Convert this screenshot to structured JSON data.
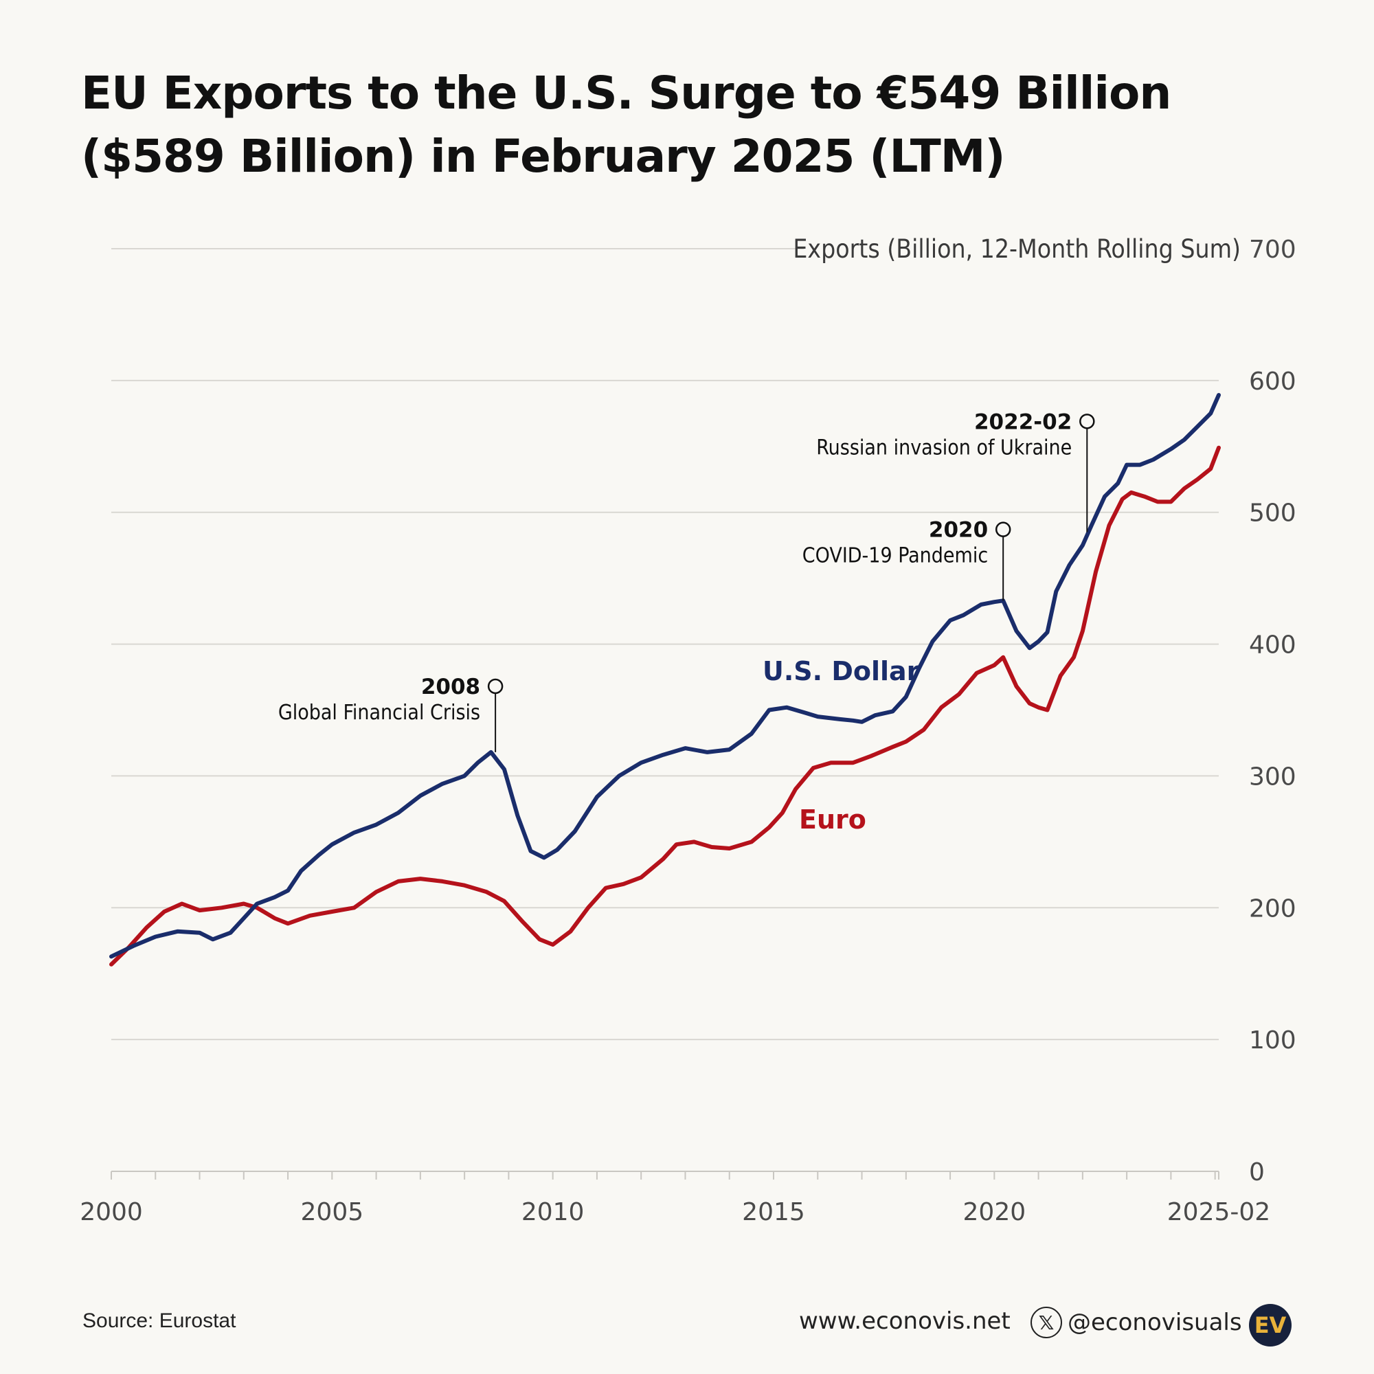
{
  "title": {
    "line1": "EU Exports to the U.S. Surge to €549 Billion",
    "line2": "($589 Billion) in February 2025 (LTM)"
  },
  "chart_data": {
    "type": "line",
    "title": "EU Exports to the U.S. Surge to €549 Billion ($589 Billion) in February 2025 (LTM)",
    "ylabel": "Exports (Billion, 12-Month Rolling Sum)",
    "xlabel": "",
    "ylim": [
      0,
      700
    ],
    "xlim": [
      2000.0,
      2025.083
    ],
    "y_ticks": [
      0,
      100,
      200,
      300,
      400,
      500,
      600,
      700
    ],
    "x_tick_values": [
      2000,
      2005,
      2010,
      2015,
      2020,
      2025.083
    ],
    "x_tick_labels": [
      "2000",
      "2005",
      "2010",
      "2015",
      "2020",
      "2025-02"
    ],
    "grid": true,
    "series": [
      {
        "name": "U.S. Dollar",
        "color": "#1a2d6b",
        "x": [
          2000.0,
          2000.5,
          2001.0,
          2001.5,
          2002.0,
          2002.3,
          2002.7,
          2003.0,
          2003.3,
          2003.7,
          2004.0,
          2004.3,
          2004.7,
          2005.0,
          2005.5,
          2006.0,
          2006.5,
          2007.0,
          2007.5,
          2008.0,
          2008.3,
          2008.6,
          2008.9,
          2009.2,
          2009.5,
          2009.8,
          2010.1,
          2010.5,
          2011.0,
          2011.5,
          2012.0,
          2012.5,
          2013.0,
          2013.5,
          2014.0,
          2014.5,
          2014.9,
          2015.3,
          2015.7,
          2016.0,
          2016.5,
          2016.8,
          2017.0,
          2017.3,
          2017.7,
          2018.0,
          2018.3,
          2018.6,
          2019.0,
          2019.3,
          2019.7,
          2020.0,
          2020.2,
          2020.5,
          2020.8,
          2021.0,
          2021.2,
          2021.4,
          2021.7,
          2022.0,
          2022.2,
          2022.5,
          2022.8,
          2023.0,
          2023.3,
          2023.6,
          2024.0,
          2024.3,
          2024.6,
          2024.9,
          2025.083
        ],
        "values": [
          163,
          171,
          178,
          182,
          181,
          176,
          181,
          192,
          203,
          208,
          213,
          228,
          240,
          248,
          257,
          263,
          272,
          285,
          294,
          300,
          310,
          318,
          305,
          270,
          243,
          238,
          244,
          258,
          284,
          300,
          310,
          316,
          321,
          318,
          320,
          332,
          350,
          352,
          348,
          345,
          343,
          342,
          341,
          346,
          349,
          360,
          382,
          402,
          418,
          422,
          430,
          432,
          433,
          410,
          397,
          402,
          409,
          440,
          460,
          475,
          490,
          512,
          522,
          536,
          536,
          540,
          548,
          555,
          565,
          575,
          589
        ]
      },
      {
        "name": "Euro",
        "color": "#b5121b",
        "x": [
          2000.0,
          2000.4,
          2000.8,
          2001.2,
          2001.6,
          2002.0,
          2002.5,
          2003.0,
          2003.3,
          2003.7,
          2004.0,
          2004.5,
          2005.0,
          2005.5,
          2006.0,
          2006.5,
          2007.0,
          2007.5,
          2008.0,
          2008.5,
          2008.9,
          2009.3,
          2009.7,
          2010.0,
          2010.4,
          2010.8,
          2011.2,
          2011.6,
          2012.0,
          2012.5,
          2012.8,
          2013.2,
          2013.6,
          2014.0,
          2014.5,
          2014.9,
          2015.2,
          2015.5,
          2015.9,
          2016.3,
          2016.8,
          2017.2,
          2017.7,
          2018.0,
          2018.4,
          2018.8,
          2019.2,
          2019.6,
          2020.0,
          2020.2,
          2020.5,
          2020.8,
          2021.0,
          2021.2,
          2021.5,
          2021.8,
          2022.0,
          2022.3,
          2022.6,
          2022.9,
          2023.1,
          2023.4,
          2023.7,
          2024.0,
          2024.3,
          2024.6,
          2024.9,
          2025.083
        ],
        "values": [
          157,
          170,
          185,
          197,
          203,
          198,
          200,
          203,
          200,
          192,
          188,
          194,
          197,
          200,
          212,
          220,
          222,
          220,
          217,
          212,
          205,
          190,
          176,
          172,
          182,
          200,
          215,
          218,
          223,
          237,
          248,
          250,
          246,
          245,
          250,
          261,
          272,
          290,
          306,
          310,
          310,
          315,
          322,
          326,
          335,
          352,
          362,
          378,
          384,
          390,
          368,
          355,
          352,
          350,
          376,
          390,
          410,
          455,
          490,
          510,
          515,
          512,
          508,
          508,
          518,
          525,
          533,
          549
        ]
      }
    ],
    "series_labels": [
      "U.S. Dollar",
      "Euro"
    ],
    "annotations": [
      {
        "year_label": "2008",
        "text": "Global Financial Crisis",
        "x": 2008.7,
        "y": 318,
        "label_y": 368
      },
      {
        "year_label": "2020",
        "text": "COVID-19 Pandemic",
        "x": 2020.2,
        "y": 433,
        "label_y": 487
      },
      {
        "year_label": "2022-02",
        "text": "Russian invasion of Ukraine",
        "x": 2022.1,
        "y": 485,
        "label_y": 569
      }
    ]
  },
  "footer": {
    "source": "Source: Eurostat",
    "website": "www.econovis.net",
    "handle": "@econovisuals",
    "x_icon": "x-logo-icon",
    "logo_text": "EV"
  }
}
